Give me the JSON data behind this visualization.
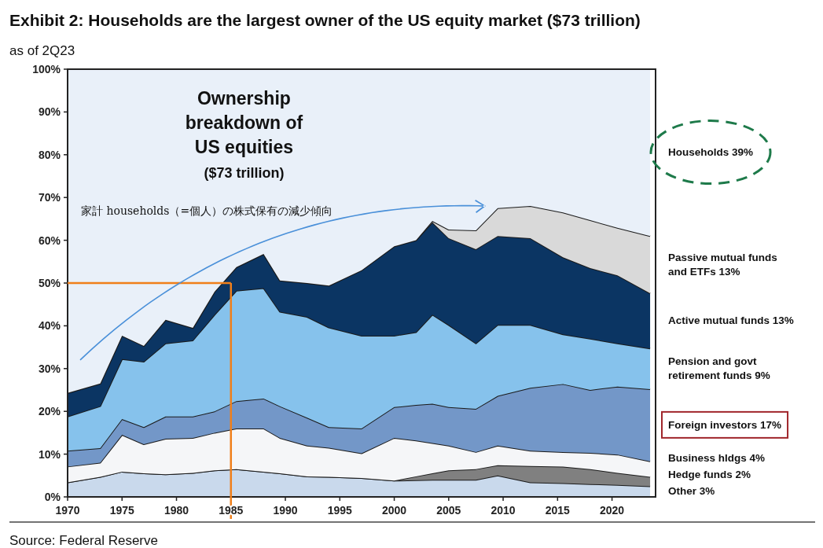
{
  "chart_data": {
    "type": "area",
    "stacked": true,
    "title": "Exhibit 2: Households are the largest owner of the US equity market ($73 trillion)",
    "subtitle": "as of 2Q23",
    "x": [
      1970,
      1973,
      1975,
      1977,
      1979,
      1981.5,
      1983.5,
      1985.5,
      1988,
      1989.5,
      1992,
      1994,
      1997,
      2000,
      2002,
      2003.5,
      2005,
      2007.5,
      2009.5,
      2012.5,
      2015.5,
      2018,
      2020.5,
      2023.5
    ],
    "series": [
      {
        "name": "Other 3%",
        "color": "#c9d9ec",
        "values": [
          3.4,
          4.7,
          5.9,
          5.5,
          5.3,
          5.6,
          6.2,
          6.5,
          5.9,
          5.5,
          4.8,
          4.7,
          4.4,
          3.8,
          3.9,
          4.0,
          4.0,
          4.0,
          5.0,
          3.4,
          3.2,
          3.0,
          2.8,
          2.5
        ]
      },
      {
        "name": "Hedge funds 2%",
        "color": "#808080",
        "values": [
          0,
          0,
          0,
          0,
          0,
          0,
          0,
          0,
          0,
          0,
          0,
          0,
          0,
          0,
          0.9,
          1.5,
          2.2,
          2.5,
          2.4,
          3.8,
          3.9,
          3.5,
          2.8,
          2.2
        ]
      },
      {
        "name": "Business hldgs 4%",
        "color": "#f5f6f8",
        "values": [
          3.7,
          3.3,
          8.6,
          6.8,
          8.3,
          8.2,
          8.8,
          9.5,
          10.1,
          8.3,
          7.2,
          6.8,
          5.8,
          10.0,
          8.4,
          7.1,
          5.8,
          4.0,
          4.6,
          3.6,
          3.4,
          3.8,
          4.3,
          3.6
        ]
      },
      {
        "name": "Foreign investors 17%",
        "color": "#7397c8",
        "values": [
          3.7,
          3.4,
          3.7,
          4.0,
          5.2,
          5.0,
          5.0,
          6.4,
          7.0,
          7.4,
          6.5,
          4.8,
          5.8,
          7.2,
          8.3,
          9.2,
          9.0,
          10.1,
          11.6,
          14.7,
          15.9,
          14.7,
          15.9,
          16.9
        ]
      },
      {
        "name": "Pension and govt retirement funds 9%",
        "color": "#86c2ec",
        "values": [
          8.0,
          9.8,
          14.0,
          15.3,
          17.1,
          17.8,
          22.6,
          25.8,
          25.8,
          22.1,
          23.6,
          23.3,
          21.7,
          16.7,
          17.0,
          20.8,
          19.2,
          15.3,
          16.6,
          14.7,
          11.6,
          12.0,
          10.1,
          9.5
        ]
      },
      {
        "name": "Active mutual funds 13%",
        "color": "#0b3563",
        "values": [
          5.5,
          5.3,
          5.5,
          3.7,
          5.5,
          2.9,
          5.4,
          5.5,
          8.0,
          7.3,
          7.9,
          9.8,
          15.3,
          20.9,
          21.5,
          21.6,
          20.3,
          22.0,
          20.8,
          20.3,
          18.0,
          16.5,
          15.9,
          12.9
        ]
      },
      {
        "name": "Passive mutual funds and ETFs 13%",
        "color": "#d9d9d9",
        "values": [
          0,
          0,
          0,
          0,
          0,
          0,
          0,
          0,
          0,
          0,
          0,
          0,
          0,
          0,
          0,
          0.3,
          2.0,
          4.4,
          6.5,
          7.5,
          10.5,
          11.2,
          11.1,
          13.4
        ]
      },
      {
        "name": "Households 39%",
        "color": "#e9f0f9",
        "values": [
          75.7,
          73.5,
          62.3,
          64.7,
          58.6,
          60.5,
          52.0,
          46.3,
          43.2,
          49.4,
          50.0,
          50.6,
          47.0,
          41.4,
          40.0,
          35.5,
          37.5,
          37.7,
          32.5,
          32.0,
          33.5,
          35.3,
          37.1,
          39.0
        ]
      }
    ],
    "xlim": [
      1970,
      2024
    ],
    "xticks": [
      1970,
      1975,
      1980,
      1985,
      1990,
      1995,
      2000,
      2005,
      2010,
      2015,
      2020
    ],
    "ylim": [
      0,
      100
    ],
    "yticks": [
      {
        "value": 0,
        "label": "0%"
      },
      {
        "value": 10,
        "label": "10%"
      },
      {
        "value": 20,
        "label": "20%"
      },
      {
        "value": 30,
        "label": "30%"
      },
      {
        "value": 40,
        "label": "40%"
      },
      {
        "value": 50,
        "label": "50%"
      },
      {
        "value": 60,
        "label": "60%"
      },
      {
        "value": 70,
        "label": "70%"
      },
      {
        "value": 80,
        "label": "80%"
      },
      {
        "value": 90,
        "label": "90%"
      },
      {
        "value": 100,
        "label": "100%"
      }
    ],
    "ref_lines": [
      {
        "axis": "y",
        "value": 50,
        "color": "#f07f1a"
      },
      {
        "axis": "x",
        "value": 1985,
        "color": "#f07f1a"
      }
    ],
    "annotations": [
      "Ownership\nbreakdown of\nUS equities\n($73 trillion)",
      "家計 households（=個人）の株式保有の減少傾向",
      "Source: Federal Reserve"
    ],
    "grid": false
  }
}
